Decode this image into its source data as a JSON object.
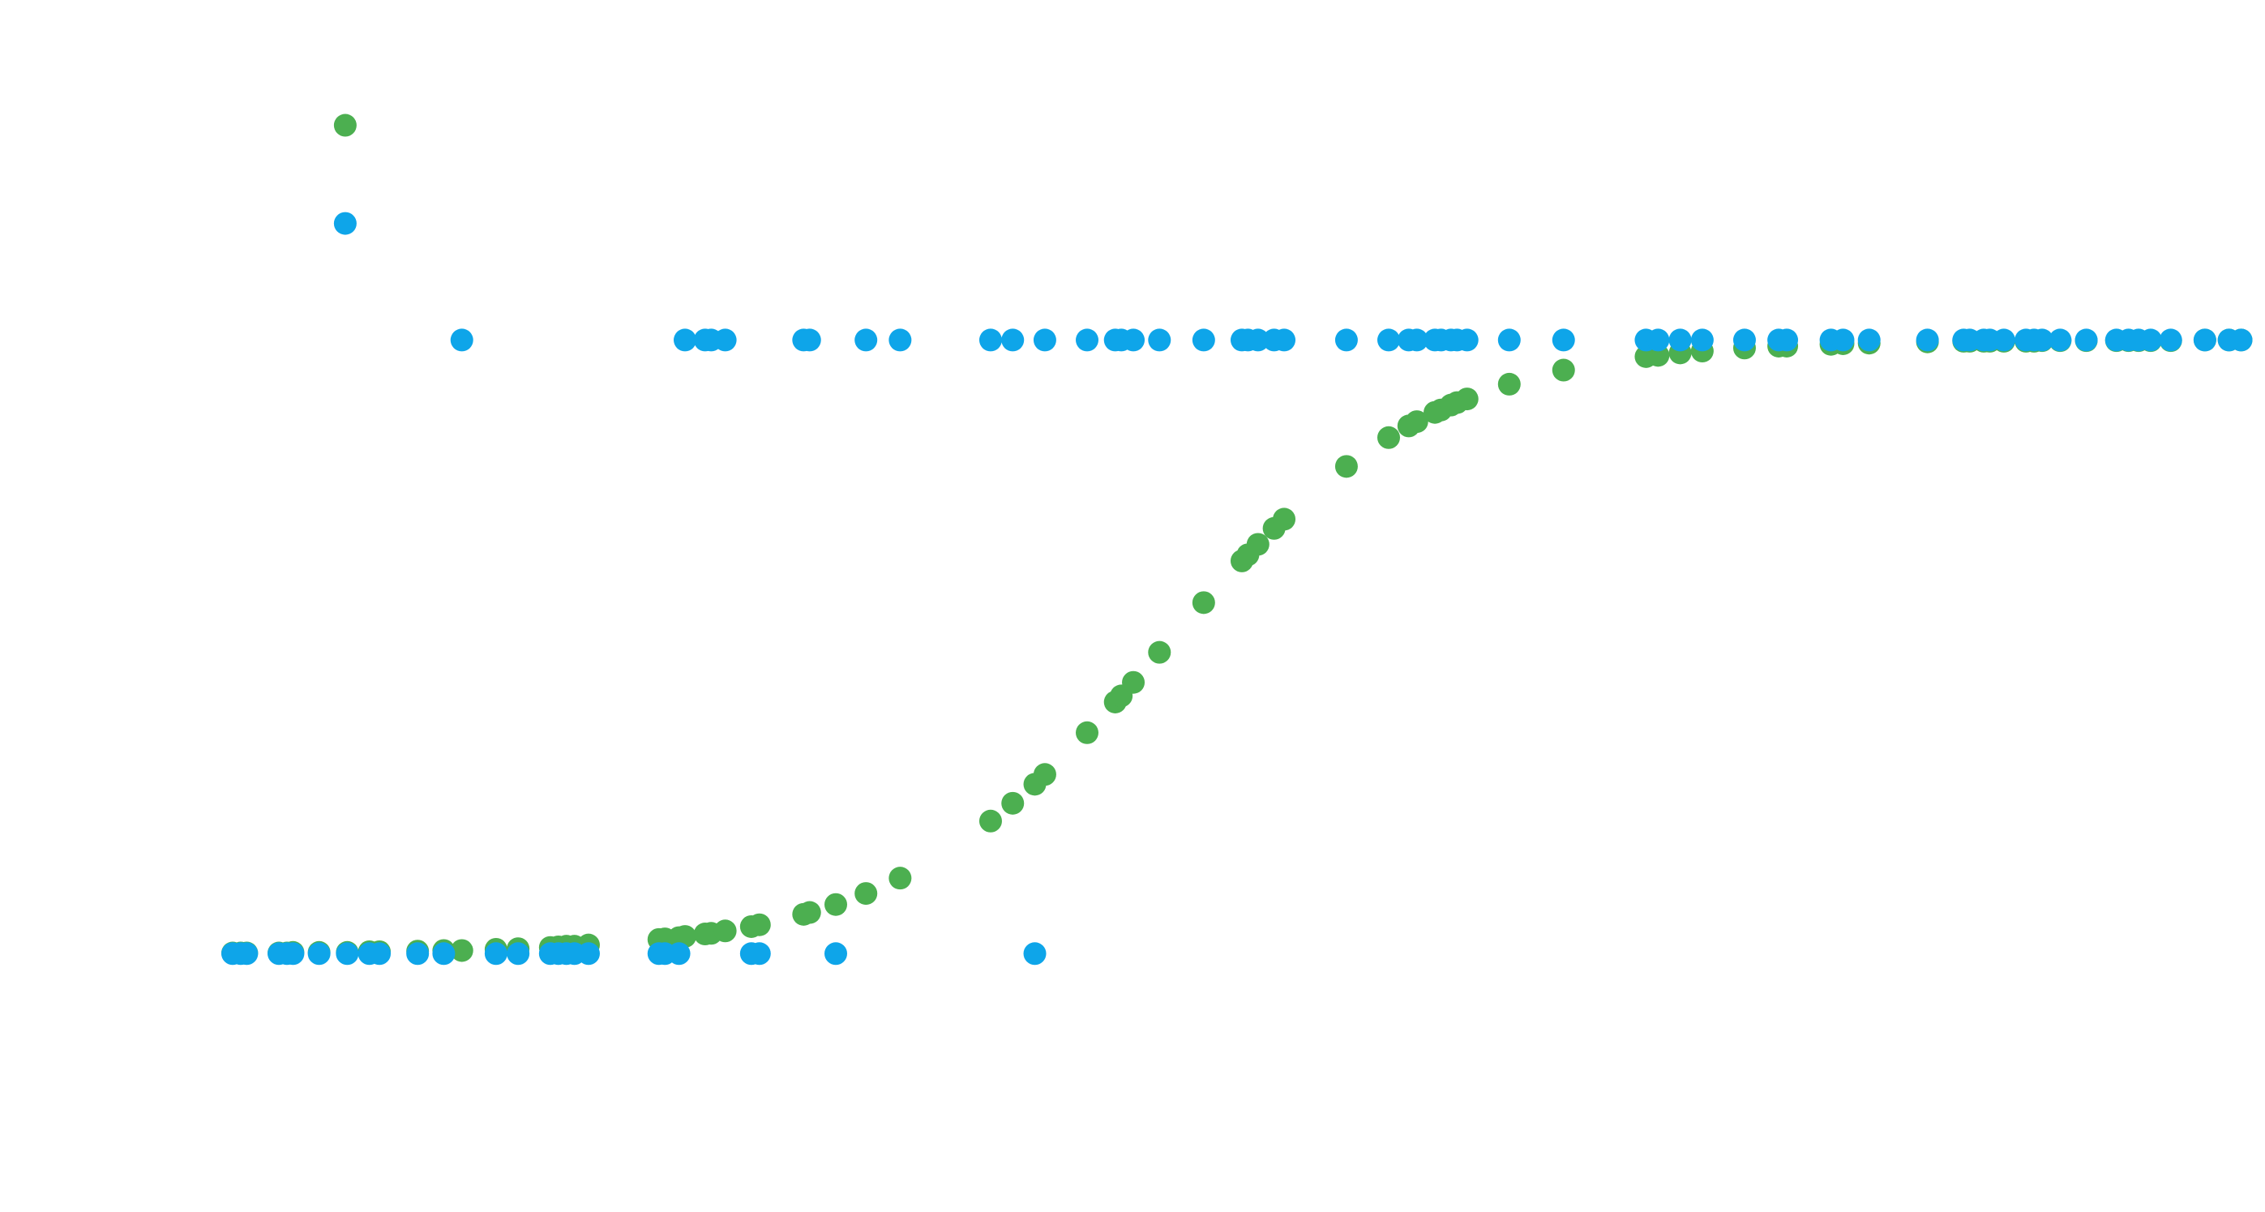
{
  "chart_data": {
    "type": "scatter",
    "xlim": [
      0,
      100
    ],
    "ylim": [
      -0.4,
      1.5
    ],
    "series": [
      {
        "color": "#4caf50",
        "x": [
          0.0,
          0.4,
          0.7,
          2.3,
          2.7,
          3.0,
          4.3,
          5.7,
          6.8,
          7.3,
          9.2,
          10.5,
          13.1,
          14.2,
          15.8,
          16.2,
          16.6,
          17.0,
          17.7,
          21.2,
          21.5,
          22.2,
          25.8,
          26.2,
          30.0,
          39.9,
          11.4,
          22.5,
          23.5,
          23.8,
          24.5,
          28.4,
          28.7,
          31.5,
          33.2,
          37.7,
          38.8,
          40.4,
          42.5,
          43.9,
          44.2,
          44.8,
          46.1,
          48.3,
          50.2,
          50.5,
          51.0,
          51.8,
          52.3,
          55.4,
          57.5,
          58.5,
          58.9,
          59.8,
          60.1,
          60.6,
          60.9,
          61.4,
          63.5,
          66.2,
          70.3,
          70.9,
          72.0,
          73.1,
          75.2,
          76.9,
          77.3,
          79.5,
          80.1,
          81.4,
          84.3,
          86.1,
          86.4,
          87.1,
          87.4,
          88.1,
          89.2,
          89.6,
          90.0,
          90.9,
          92.2,
          93.7,
          94.3,
          94.8,
          95.4,
          96.4,
          98.1,
          99.3,
          99.9,
          5.6
        ],
        "values": [
          0.001,
          0.001,
          0.001,
          0.001,
          0.001,
          0.002,
          0.002,
          0.002,
          0.003,
          0.003,
          0.004,
          0.005,
          0.007,
          0.008,
          0.01,
          0.011,
          0.012,
          0.012,
          0.014,
          0.023,
          0.024,
          0.026,
          0.044,
          0.047,
          0.08,
          0.276,
          0.005,
          0.028,
          0.032,
          0.033,
          0.037,
          0.064,
          0.067,
          0.098,
          0.123,
          0.216,
          0.245,
          0.292,
          0.36,
          0.41,
          0.42,
          0.442,
          0.491,
          0.572,
          0.64,
          0.65,
          0.667,
          0.693,
          0.708,
          0.794,
          0.841,
          0.86,
          0.867,
          0.882,
          0.886,
          0.894,
          0.898,
          0.904,
          0.928,
          0.951,
          0.973,
          0.975,
          0.979,
          0.982,
          0.987,
          0.99,
          0.99,
          0.993,
          0.994,
          0.995,
          0.997,
          0.998,
          0.998,
          0.998,
          0.998,
          0.998,
          0.998,
          0.998,
          0.999,
          0.999,
          0.999,
          0.999,
          0.999,
          0.999,
          0.999,
          0.999,
          1,
          1,
          1,
          1.35
        ]
      },
      {
        "color": "#0ea5e9",
        "x": [
          0.0,
          0.4,
          0.7,
          2.3,
          2.7,
          3.0,
          4.3,
          5.7,
          6.8,
          7.3,
          9.2,
          10.5,
          13.1,
          14.2,
          15.8,
          16.2,
          16.6,
          17.0,
          17.7,
          21.2,
          21.5,
          22.2,
          25.8,
          26.2,
          30.0,
          39.9,
          11.4,
          22.5,
          23.5,
          23.8,
          24.5,
          28.4,
          28.7,
          31.5,
          33.2,
          37.7,
          38.8,
          40.4,
          42.5,
          43.9,
          44.2,
          44.8,
          46.1,
          48.3,
          50.2,
          50.5,
          51.0,
          51.8,
          52.3,
          55.4,
          57.5,
          58.5,
          58.9,
          59.8,
          60.1,
          60.6,
          60.9,
          61.4,
          63.5,
          66.2,
          70.3,
          70.9,
          72.0,
          73.1,
          75.2,
          76.9,
          77.3,
          79.5,
          80.1,
          81.4,
          84.3,
          86.1,
          86.4,
          87.1,
          87.4,
          88.1,
          89.2,
          89.6,
          90.0,
          90.9,
          92.2,
          93.7,
          94.3,
          94.8,
          95.4,
          96.4,
          98.1,
          99.3,
          99.9,
          5.6
        ],
        "values": [
          0,
          0,
          0,
          0,
          0,
          0,
          0,
          0,
          0,
          0,
          0,
          0,
          0,
          0,
          0,
          0,
          0,
          0,
          0,
          0,
          0,
          0,
          0,
          0,
          0,
          0,
          1,
          1,
          1,
          1,
          1,
          1,
          1,
          1,
          1,
          1,
          1,
          1,
          1,
          1,
          1,
          1,
          1,
          1,
          1,
          1,
          1,
          1,
          1,
          1,
          1,
          1,
          1,
          1,
          1,
          1,
          1,
          1,
          1,
          1,
          1,
          1,
          1,
          1,
          1,
          1,
          1,
          1,
          1,
          1,
          1,
          1,
          1,
          1,
          1,
          1,
          1,
          1,
          1,
          1,
          1,
          1,
          1,
          1,
          1,
          1,
          1,
          1,
          1,
          1.19
        ]
      }
    ]
  }
}
